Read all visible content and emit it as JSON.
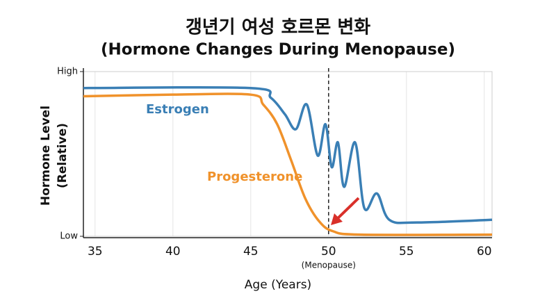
{
  "chart_data": {
    "type": "line",
    "title": [
      "갱년기 여성 호르몬 변화",
      "(Hormone Changes During Menopause)"
    ],
    "x_label": "Age (Years)",
    "y_label": [
      "Hormone Level",
      "(Relative)"
    ],
    "xlim": [
      34.25,
      60.5
    ],
    "xticks": [
      35,
      40,
      45,
      50,
      55,
      60
    ],
    "ylim": [
      0,
      1
    ],
    "yticks": [
      {
        "value": 0,
        "label": "Low"
      },
      {
        "value": 1,
        "label": "High"
      }
    ],
    "grid": true,
    "vline": {
      "x": 50,
      "label": "(Menopause)"
    },
    "series": [
      {
        "name": "Estrogen",
        "color": "#3a7fb5",
        "x": [
          34.25,
          45,
          46.3,
          47.2,
          47.9,
          48.6,
          49.3,
          49.8,
          50.2,
          50.6,
          51,
          51.7,
          52.3,
          53.1,
          53.9,
          55.7,
          60.5
        ],
        "values": [
          0.9,
          0.9,
          0.84,
          0.74,
          0.65,
          0.8,
          0.49,
          0.68,
          0.42,
          0.57,
          0.3,
          0.57,
          0.17,
          0.26,
          0.1,
          0.084,
          0.1
        ]
      },
      {
        "name": "Progesterone",
        "color": "#f0922b",
        "x": [
          34.25,
          40,
          45,
          45.8,
          46.7,
          47.6,
          48.5,
          49.4,
          50.3,
          52.1,
          60.5
        ],
        "values": [
          0.85,
          0.86,
          0.86,
          0.8,
          0.68,
          0.46,
          0.23,
          0.09,
          0.03,
          0.01,
          0.01
        ]
      }
    ]
  }
}
